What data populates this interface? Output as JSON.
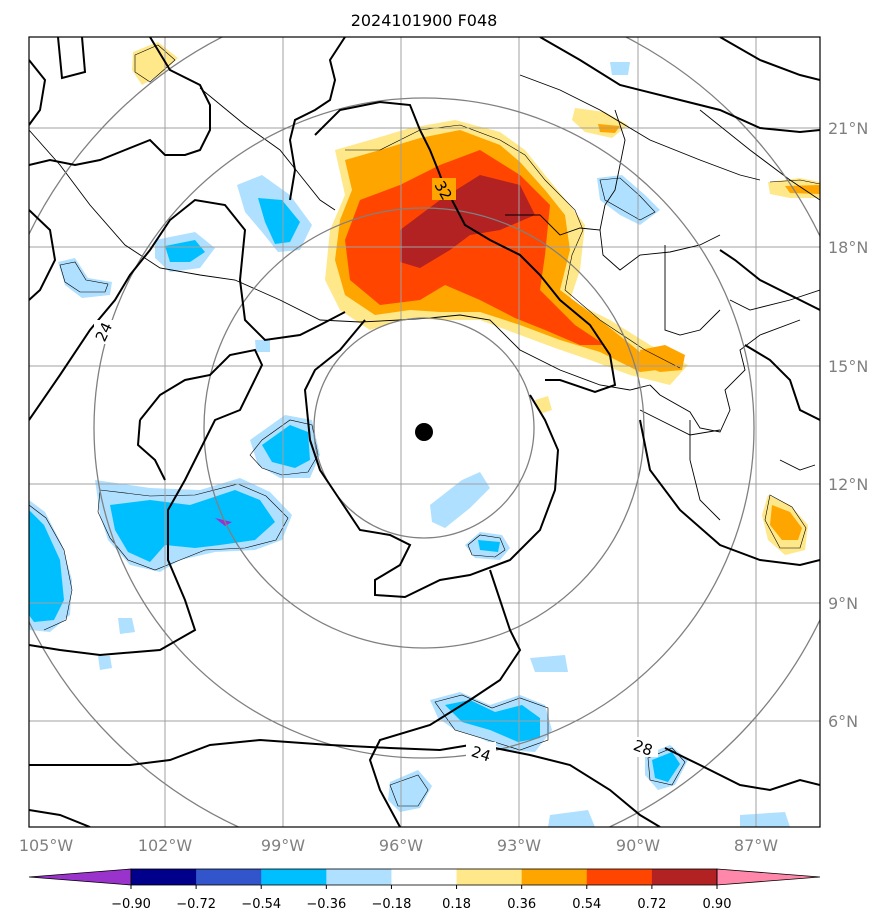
{
  "title": "2024101900 F048",
  "lon_labels": [
    "105°W",
    "102°W",
    "99°W",
    "96°W",
    "93°W",
    "90°W",
    "87°W"
  ],
  "lat_labels": [
    "21°N",
    "18°N",
    "15°N",
    "12°N",
    "9°N",
    "6°N"
  ],
  "contour_labels": [
    "32",
    "24",
    "24",
    "28"
  ],
  "colorbar": {
    "tick_labels": [
      "−0.90",
      "−0.72",
      "−0.54",
      "−0.36",
      "−0.18",
      "0.18",
      "0.36",
      "0.54",
      "0.72",
      "0.90"
    ],
    "colors": [
      "#9933cc",
      "#00008b",
      "#3355cc",
      "#00bfff",
      "#b0e0ff",
      "#ffffff",
      "#ffe88a",
      "#ffa500",
      "#ff4500",
      "#b22222",
      "#ff88aa"
    ]
  },
  "colors": {
    "frame": "#000000",
    "gridline": "#a0a0a0",
    "axis_label": "#808080",
    "range_rings": "#808080",
    "contour": "#000000",
    "center_marker": "#000000"
  },
  "center_marker": {
    "lon": -95.4,
    "lat": 13.3
  }
}
